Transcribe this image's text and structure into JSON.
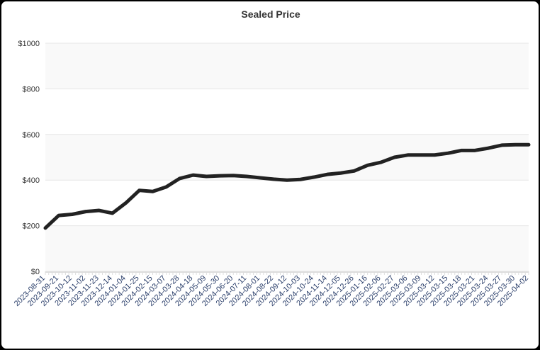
{
  "chart_data": {
    "type": "line",
    "title": "Sealed Price",
    "xlabel": "",
    "ylabel": "",
    "ylim": [
      0,
      1000
    ],
    "yticks": [
      "$0",
      "$200",
      "$400",
      "$600",
      "$800",
      "$1000"
    ],
    "ytick_values": [
      0,
      200,
      400,
      600,
      800,
      1000
    ],
    "grid": true,
    "line_color": "#222222",
    "x": [
      "2023-08-31",
      "2023-09-21",
      "2023-10-12",
      "2023-11-02",
      "2023-11-23",
      "2023-12-14",
      "2024-01-04",
      "2024-01-25",
      "2024-02-15",
      "2024-03-07",
      "2024-03-28",
      "2024-04-18",
      "2024-05-09",
      "2024-05-30",
      "2024-06-20",
      "2024-07-11",
      "2024-08-01",
      "2024-08-22",
      "2024-09-12",
      "2024-10-03",
      "2024-10-24",
      "2024-11-14",
      "2024-12-05",
      "2024-12-26",
      "2025-01-16",
      "2025-02-06",
      "2025-02-27",
      "2025-03-06",
      "2025-03-09",
      "2025-03-12",
      "2025-03-15",
      "2025-03-18",
      "2025-03-21",
      "2025-03-24",
      "2025-03-27",
      "2025-03-30",
      "2025-04-02"
    ],
    "values": [
      190,
      245,
      250,
      262,
      267,
      255,
      300,
      355,
      350,
      370,
      407,
      422,
      416,
      419,
      420,
      416,
      410,
      404,
      400,
      403,
      413,
      425,
      431,
      440,
      465,
      478,
      500,
      510,
      510,
      510,
      518,
      530,
      530,
      540,
      553,
      555,
      555
    ]
  }
}
